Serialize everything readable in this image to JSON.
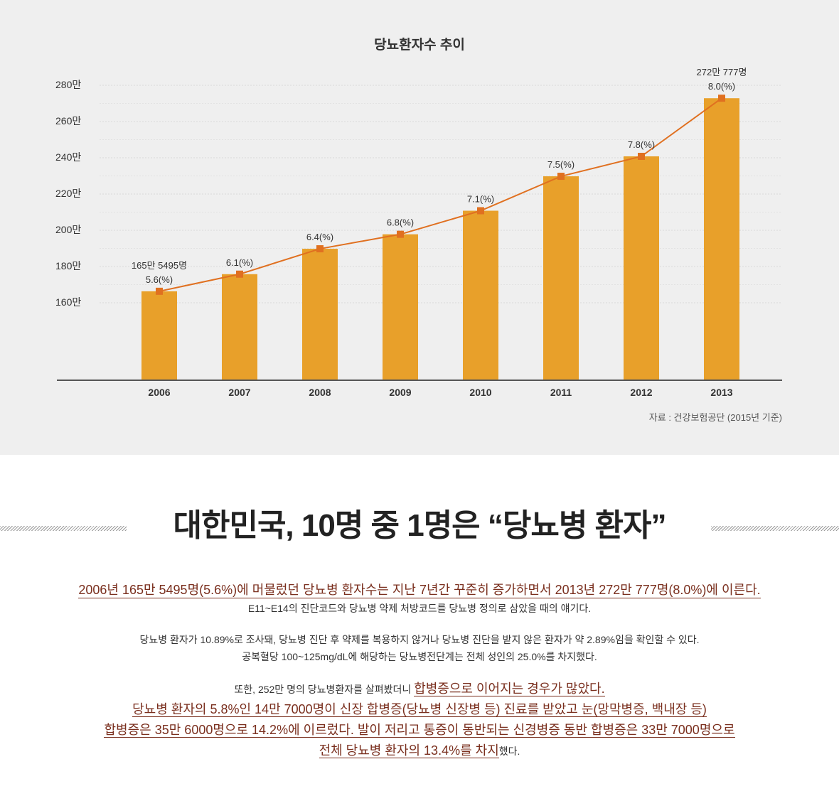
{
  "chart_data": {
    "type": "bar",
    "title": "당뇨환자수 추이",
    "categories": [
      "2006",
      "2007",
      "2008",
      "2009",
      "2010",
      "2011",
      "2012",
      "2013"
    ],
    "values": [
      165.5495,
      175,
      189,
      197,
      210,
      229,
      240,
      272.0777
    ],
    "y_tick_labels": [
      "280만",
      "260만",
      "240만",
      "220만",
      "200만",
      "180만",
      "160만"
    ],
    "y_ticks": [
      280,
      260,
      240,
      220,
      200,
      180,
      160
    ],
    "ylim": [
      120,
      290
    ],
    "series": [
      {
        "name": "",
        "type": "line",
        "values": [
          165.5495,
          175,
          189,
          197,
          210,
          229,
          240,
          272.0777
        ]
      }
    ],
    "percent_labels": [
      "5.6(%)",
      "6.1(%)",
      "6.4(%)",
      "6.8(%)",
      "7.1(%)",
      "7.5(%)",
      "7.8(%)",
      "8.0(%)"
    ],
    "count_labels": [
      "165만 5495명",
      "",
      "",
      "",
      "",
      "",
      "",
      "272만 777명"
    ],
    "bar_color": "#e8a02a",
    "line_color": "#e07020",
    "grid": true,
    "source": "자료 : 건강보험공단 (2015년 기준)"
  },
  "headline": "대한민국, 10명 중 1명은 “당뇨병 환자”",
  "article": {
    "lead": "2006년 165만 5495명(5.6%)에 머물렀던 당뇨병 환자수는 지난 7년간 꾸준히 증가하면서 2013년 272만 777명(8.0%)에 이른다.",
    "p1": "E11~E14의 진단코드와 당뇨병 약제 처방코드를 당뇨병 정의로 삼았을 때의 얘기다.",
    "p2": "당뇨병 환자가 10.89%로 조사돼, 당뇨병 진단 후 약제를 복용하지 않거나 당뇨병 진단을 받지 않은 환자가 약 2.89%임을 확인할 수 있다.",
    "p3": "공복혈당 100~125mg/dL에 해당하는 당뇨병전단계는 전체 성인의 25.0%를 차지했다.",
    "p4_plain": "또한, 252만 명의 당뇨병환자를 살펴봤더니 ",
    "p4_highlight": "합병증으로 이어지는 경우가 많았다.",
    "p5": "당뇨병 환자의 5.8%인 14만 7000명이 신장 합병증(당뇨병 신장병 등) 진료를 받았고 눈(망막병증, 백내장 등)",
    "p6": "합병증은 35만 6000명으로 14.2%에 이르렀다. 발이 저리고 통증이 동반되는 신경병증 동반 합병증은 33만 7000명으로",
    "p7_highlight": "전체 당뇨병 환자의 13.4%를 차지",
    "p7_tail": "했다."
  }
}
